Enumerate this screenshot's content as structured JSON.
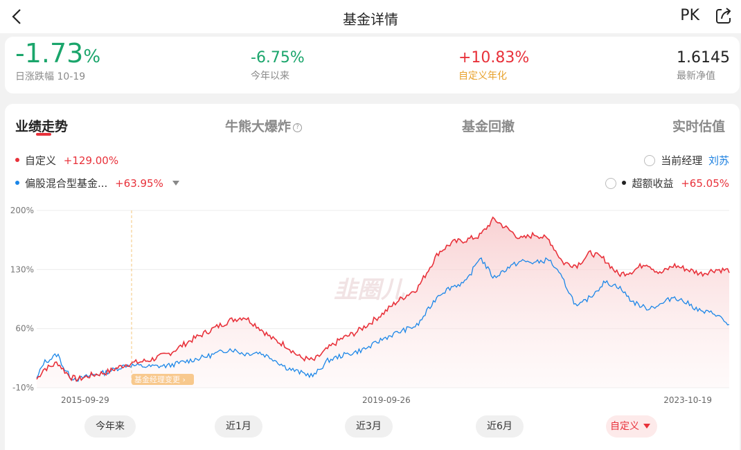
{
  "nav": {
    "title": "基金详情",
    "pk_label": "PK"
  },
  "stats": {
    "daily": {
      "value": "-1.73",
      "unit": "%",
      "label": "日涨跌幅 10-19"
    },
    "ytd": {
      "value": "-6.75%",
      "label": "今年以来"
    },
    "custom_annual": {
      "value": "+10.83%",
      "label": "自定义年化"
    },
    "nav_value": {
      "value": "1.6145",
      "label": "最新净值"
    }
  },
  "tabs": [
    "业绩走势",
    "牛熊大爆炸",
    "基金回撤",
    "实时估值"
  ],
  "legend": {
    "series1": {
      "name": "自定义",
      "value": "+129.00%"
    },
    "series2": {
      "name": "偏股混合型基金...",
      "value": "+63.95%"
    },
    "manager": {
      "label": "当前经理",
      "name": "刘苏"
    },
    "excess": {
      "label": "超额收益",
      "value": "+65.05%"
    }
  },
  "watermark": "韭圈儿",
  "colors": {
    "red": "#e8313a",
    "blue": "#1a86e8",
    "green": "#1aa56b",
    "orange": "#e8a12b"
  },
  "chart_data": {
    "type": "line",
    "y_ticks": [
      "200%",
      "130%",
      "60%",
      "-10%"
    ],
    "ylim": [
      -10,
      200
    ],
    "x_ticks": [
      "2015-09-29",
      "2019-09-26",
      "2023-10-19"
    ],
    "annotation": "基金经理变更",
    "series": [
      {
        "name": "自定义",
        "x": [
          0,
          0.01,
          0.02,
          0.03,
          0.04,
          0.05,
          0.06,
          0.08,
          0.1,
          0.13,
          0.16,
          0.19,
          0.22,
          0.25,
          0.28,
          0.3,
          0.32,
          0.34,
          0.36,
          0.38,
          0.4,
          0.42,
          0.44,
          0.46,
          0.48,
          0.5,
          0.52,
          0.55,
          0.58,
          0.6,
          0.62,
          0.64,
          0.66,
          0.68,
          0.7,
          0.72,
          0.74,
          0.76,
          0.78,
          0.8,
          0.82,
          0.84,
          0.86,
          0.88,
          0.9,
          0.92,
          0.94,
          0.96,
          0.98,
          1.0
        ],
        "y": [
          0,
          12,
          15,
          20,
          10,
          2,
          0,
          5,
          8,
          18,
          22,
          30,
          45,
          58,
          70,
          74,
          62,
          48,
          40,
          26,
          22,
          36,
          48,
          55,
          66,
          78,
          92,
          108,
          150,
          162,
          165,
          170,
          190,
          178,
          166,
          172,
          165,
          138,
          135,
          150,
          142,
          124,
          128,
          138,
          125,
          135,
          130,
          125,
          130,
          129
        ]
      },
      {
        "name": "偏股混合型基金...",
        "x": [
          0,
          0.01,
          0.02,
          0.03,
          0.04,
          0.05,
          0.06,
          0.08,
          0.1,
          0.13,
          0.16,
          0.19,
          0.22,
          0.25,
          0.28,
          0.3,
          0.32,
          0.34,
          0.36,
          0.38,
          0.4,
          0.42,
          0.44,
          0.46,
          0.48,
          0.5,
          0.52,
          0.55,
          0.58,
          0.6,
          0.62,
          0.64,
          0.66,
          0.68,
          0.7,
          0.72,
          0.74,
          0.76,
          0.78,
          0.8,
          0.82,
          0.84,
          0.86,
          0.88,
          0.9,
          0.92,
          0.94,
          0.96,
          0.98,
          1.0
        ],
        "y": [
          0,
          20,
          24,
          30,
          12,
          2,
          0,
          5,
          8,
          17,
          15,
          16,
          22,
          28,
          36,
          30,
          32,
          25,
          14,
          8,
          4,
          22,
          28,
          32,
          38,
          48,
          55,
          64,
          100,
          110,
          115,
          145,
          120,
          132,
          140,
          138,
          142,
          118,
          85,
          98,
          115,
          110,
          92,
          84,
          88,
          98,
          90,
          80,
          78,
          64
        ]
      }
    ]
  },
  "ranges": [
    "今年来",
    "近1月",
    "近3月",
    "近6月",
    "自定义"
  ]
}
